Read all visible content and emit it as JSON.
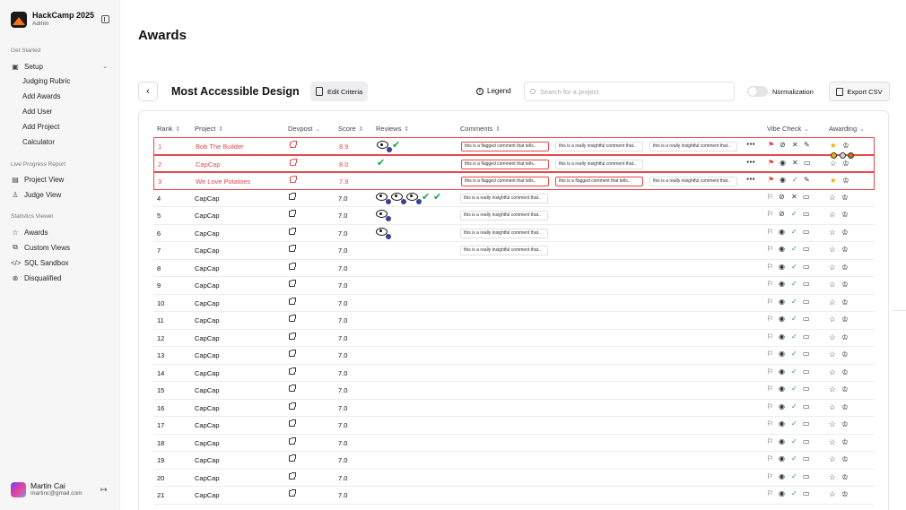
{
  "app": {
    "name": "HackCamp 2025",
    "role": "Admin"
  },
  "sidebar": {
    "get_started": "Get Started",
    "setup": "Setup",
    "setup_items": [
      "Judging Rubric",
      "Add Awards",
      "Add User",
      "Add Project",
      "Calculator"
    ],
    "live_progress": "Live Progress Report",
    "project_view": "Project View",
    "judge_view": "Judge View",
    "statistics": "Statistics Viewer",
    "awards": "Awards",
    "custom_views": "Custom Views",
    "sql_sandbox": "SQL Sandbox",
    "disqualified": "Disqualified"
  },
  "user": {
    "name": "Martin Cai",
    "email": "martinc@gmail.com"
  },
  "page": {
    "title": "Awards"
  },
  "toolbar": {
    "award_title": "Most Accessible Design",
    "edit_criteria": "Edit Criteria",
    "legend": "Legend",
    "search_placeholder": "Search for a project",
    "normalization": "Normalization",
    "export": "Export CSV"
  },
  "table": {
    "headers": {
      "rank": "Rank",
      "project": "Project",
      "devpost": "Devpost",
      "score": "Score",
      "reviews": "Reviews",
      "comments": "Comments",
      "vibe": "Vibe Check",
      "awarding": "Awarding"
    },
    "rows": [
      {
        "rank": "1",
        "project": "Bob The Builder",
        "score": "8.9",
        "flagged": true
      },
      {
        "rank": "2",
        "project": "CapCap",
        "score": "8.0",
        "flagged": true
      },
      {
        "rank": "3",
        "project": "We Love Potatoes",
        "score": "7.9",
        "flagged": true
      },
      {
        "rank": "4",
        "project": "CapCap",
        "score": "7.0"
      },
      {
        "rank": "5",
        "project": "CapCap",
        "score": "7.0"
      },
      {
        "rank": "6",
        "project": "CapCap",
        "score": "7.0"
      },
      {
        "rank": "7",
        "project": "CapCap",
        "score": "7.0"
      },
      {
        "rank": "8",
        "project": "CapCap",
        "score": "7.0"
      },
      {
        "rank": "9",
        "project": "CapCap",
        "score": "7.0"
      },
      {
        "rank": "10",
        "project": "CapCap",
        "score": "7.0"
      },
      {
        "rank": "11",
        "project": "CapCap",
        "score": "7.0"
      },
      {
        "rank": "12",
        "project": "CapCap",
        "score": "7.0"
      },
      {
        "rank": "13",
        "project": "CapCap",
        "score": "7.0"
      },
      {
        "rank": "14",
        "project": "CapCap",
        "score": "7.0"
      },
      {
        "rank": "15",
        "project": "CapCap",
        "score": "7.0"
      },
      {
        "rank": "16",
        "project": "CapCap",
        "score": "7.0"
      },
      {
        "rank": "17",
        "project": "CapCap",
        "score": "7.0"
      },
      {
        "rank": "18",
        "project": "CapCap",
        "score": "7.0"
      },
      {
        "rank": "19",
        "project": "CapCap",
        "score": "7.0"
      },
      {
        "rank": "20",
        "project": "CapCap",
        "score": "7.0"
      },
      {
        "rank": "21",
        "project": "CapCap",
        "score": "7.0"
      }
    ],
    "comments": {
      "flagged": "this is a flagged comment that tells..",
      "insightful": "this is a really insightful comment that..",
      "insightful_short": "this is a really insightful comment that.."
    }
  },
  "colors": {
    "flag": "#e5484d",
    "check": "#16a34a",
    "star": "#eab308",
    "badge": "#3b3f8f"
  }
}
